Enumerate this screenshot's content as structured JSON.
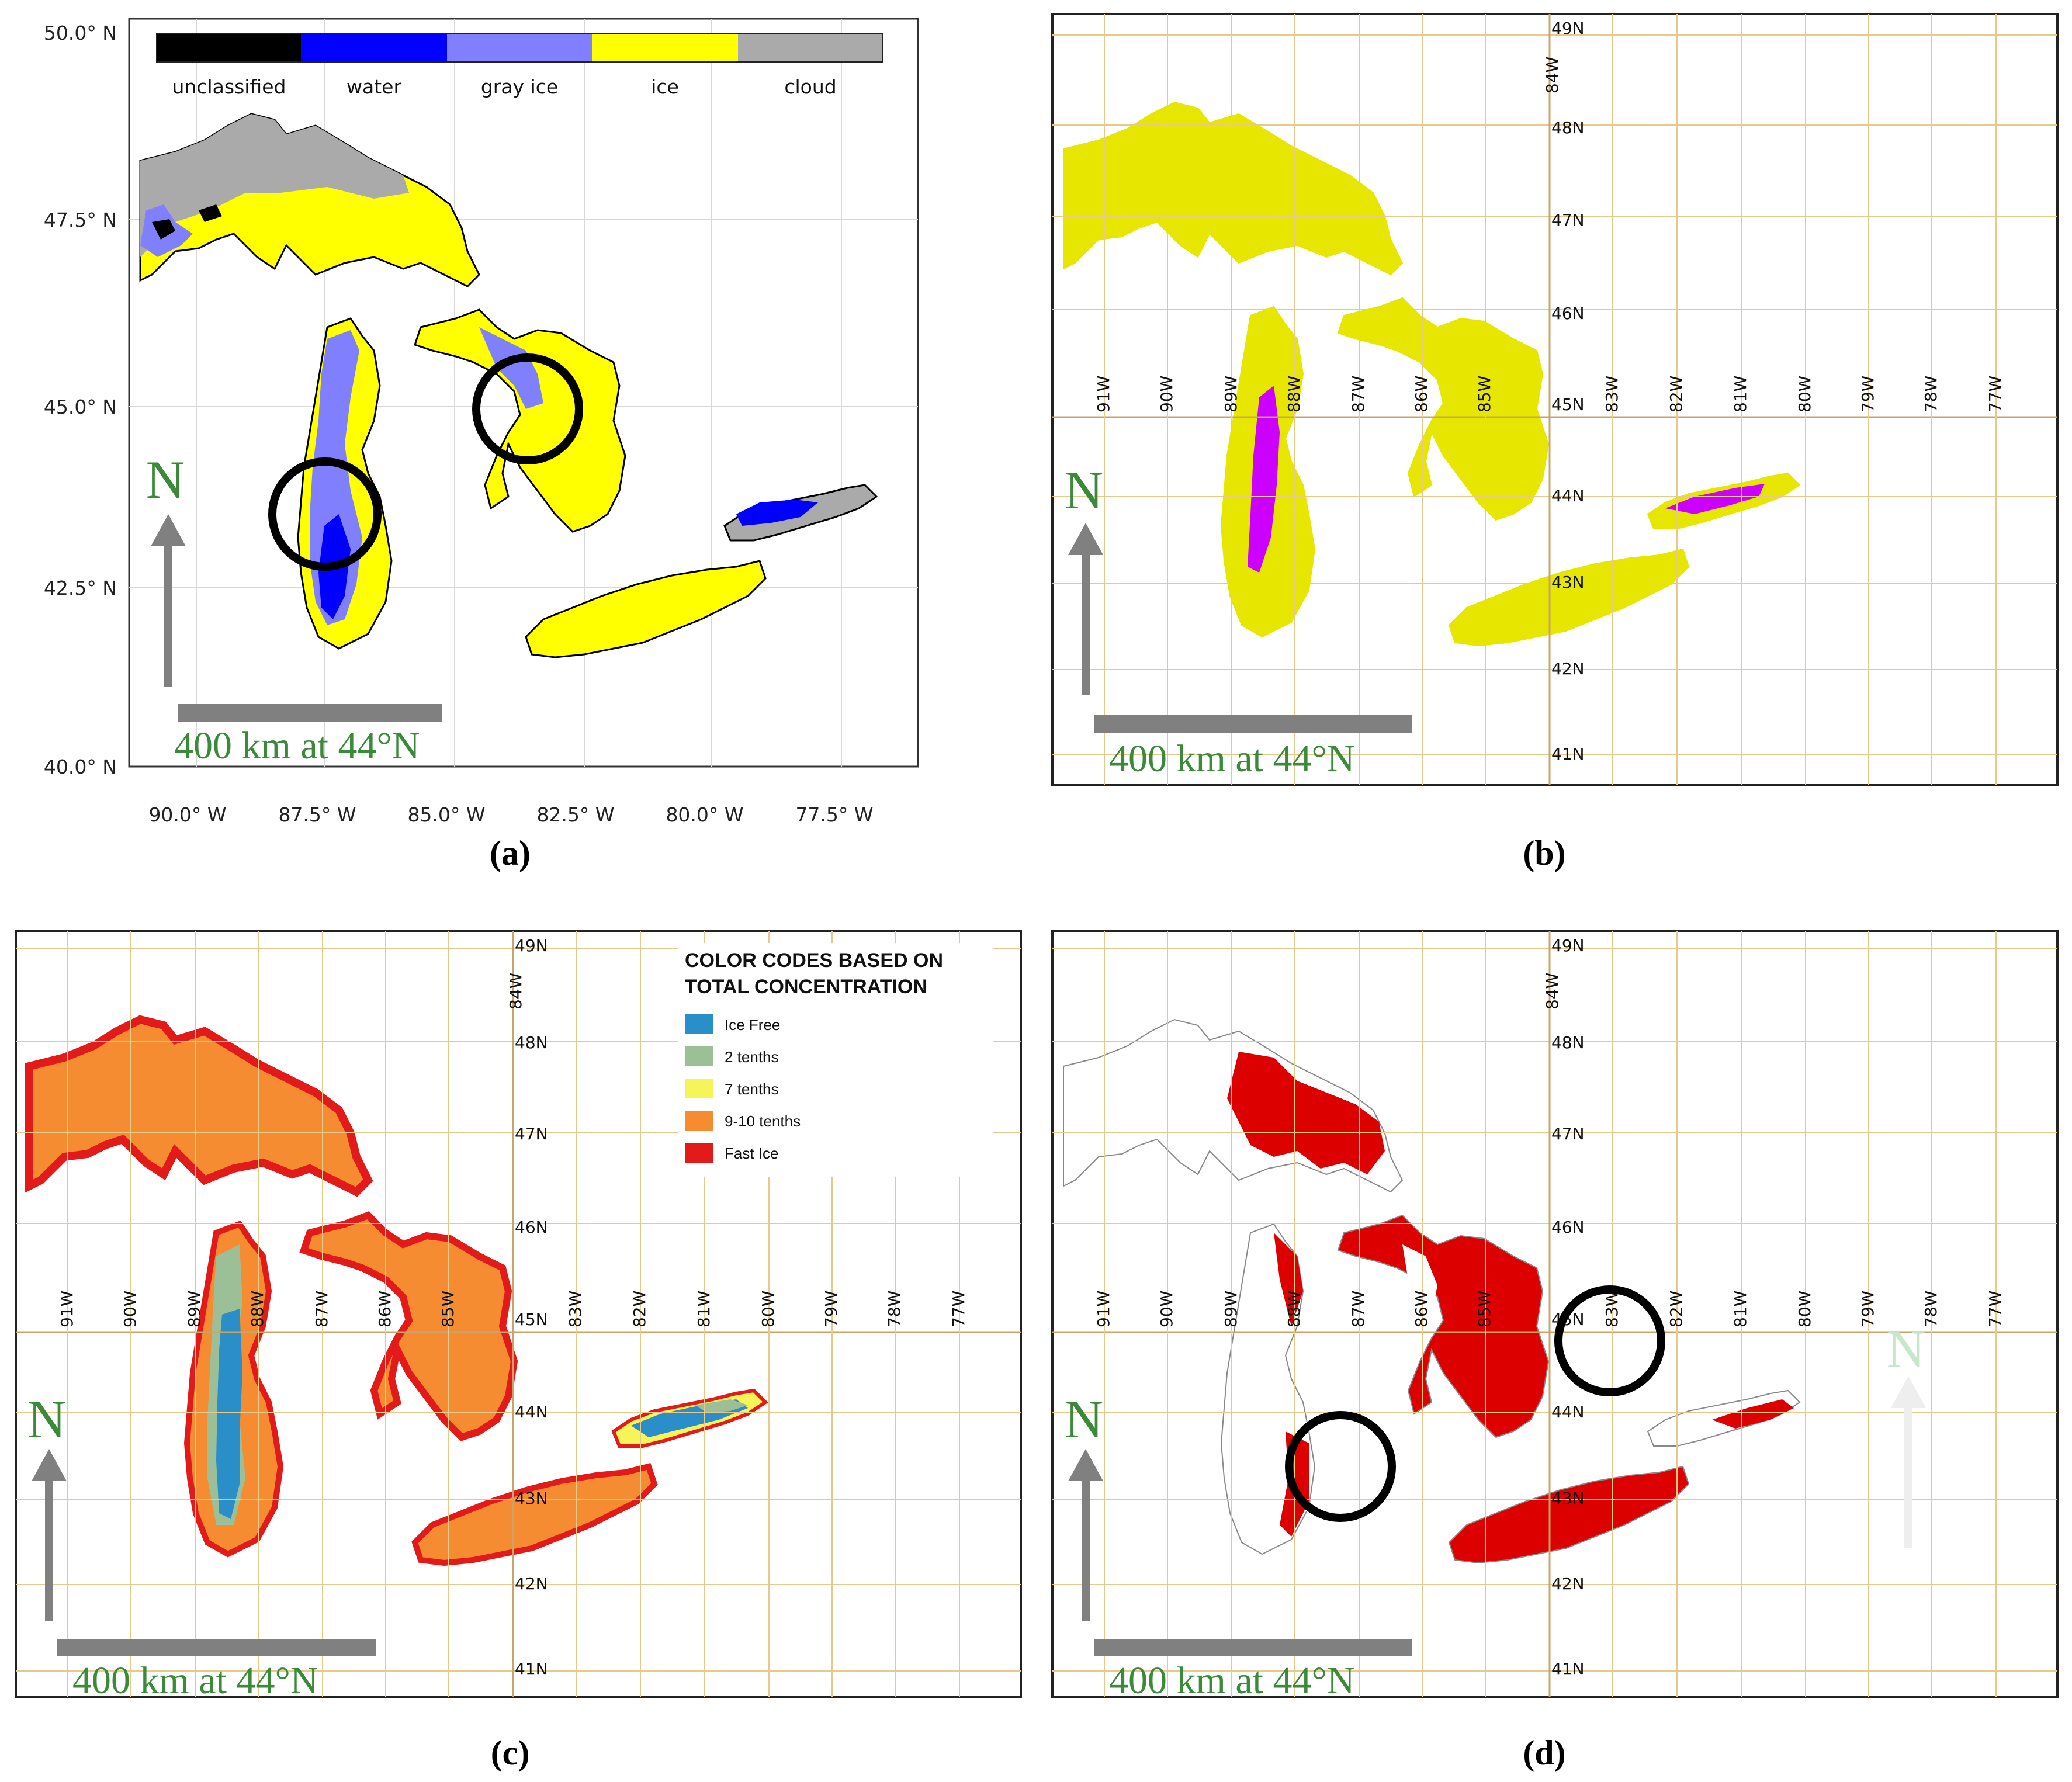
{
  "colors": {
    "unclassified": "#000000",
    "water": "#0000ff",
    "gray_ice": "#8080ff",
    "ice": "#ffff00",
    "cloud": "#aaaaaa",
    "b_ice": "#e6e600",
    "b_water": "#cc00ff",
    "ice_free": "#2a8ec8",
    "two_tenths": "#9dbf98",
    "seven_tenths": "#f5f55a",
    "nine_ten_tenths": "#f58c32",
    "fast_ice": "#e21a1a",
    "d_ice": "#dd0000",
    "scale_text": "#3a8a3a"
  },
  "panel_a": {
    "caption": "(a)",
    "lat_ticks": [
      "50.0° N",
      "47.5° N",
      "45.0° N",
      "42.5° N",
      "40.0° N"
    ],
    "lon_ticks": [
      "90.0° W",
      "87.5° W",
      "85.0° W",
      "82.5° W",
      "80.0° W",
      "77.5° W"
    ],
    "legend": [
      "unclassified",
      "water",
      "gray ice",
      "ice",
      "cloud"
    ],
    "north": "N",
    "scale_label": "400 km at 44°N"
  },
  "panel_b": {
    "caption": "(b)",
    "lat_labels": [
      "49N",
      "48N",
      "47N",
      "46N",
      "45N",
      "44N",
      "43N",
      "42N",
      "41N"
    ],
    "lon_labels": [
      "91W",
      "90W",
      "89W",
      "88W",
      "87W",
      "86W",
      "85W",
      "83W",
      "82W",
      "81W",
      "80W",
      "79W",
      "78W",
      "77W"
    ],
    "lon_84": "84W",
    "north": "N",
    "scale_label": "400 km at 44°N"
  },
  "panel_c": {
    "caption": "(c)",
    "lat_labels": [
      "49N",
      "48N",
      "47N",
      "46N",
      "45N",
      "44N",
      "43N",
      "42N",
      "41N"
    ],
    "lon_labels": [
      "91W",
      "90W",
      "89W",
      "88W",
      "87W",
      "86W",
      "85W",
      "83W",
      "82W",
      "81W",
      "80W",
      "79W",
      "78W",
      "77W"
    ],
    "lon_84": "84W",
    "legend_title_1": "COLOR CODES BASED ON",
    "legend_title_2": "TOTAL CONCENTRATION",
    "legend": [
      "Ice Free",
      "2 tenths",
      "7 tenths",
      "9-10 tenths",
      "Fast Ice"
    ],
    "north": "N",
    "scale_label": "400 km at 44°N"
  },
  "panel_d": {
    "caption": "(d)",
    "lat_labels": [
      "49N",
      "48N",
      "47N",
      "46N",
      "45N",
      "44N",
      "43N",
      "42N",
      "41N"
    ],
    "lon_labels": [
      "91W",
      "90W",
      "89W",
      "88W",
      "87W",
      "86W",
      "85W",
      "83W",
      "82W",
      "81W",
      "80W",
      "79W",
      "78W",
      "77W"
    ],
    "lon_84": "84W",
    "north": "N",
    "north_faded": "N",
    "scale_label": "400 km at 44°N"
  }
}
